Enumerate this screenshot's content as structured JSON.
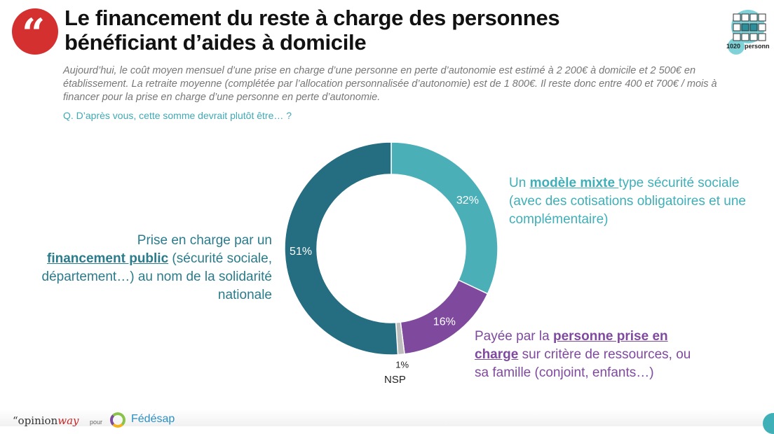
{
  "header": {
    "title_line1": "Le financement du reste à charge des personnes",
    "title_line2": "bénéficiant d’aides à domicile",
    "sample_count": "1020",
    "sample_label": "personn"
  },
  "intro": "Aujourd’hui, le coût moyen mensuel d’une prise en charge d’une personne en perte d’autonomie est estimé à 2 200€ à domicile et 2 500€ en établissement. La retraite moyenne (complétée par l’allocation personnalisée d’autonomie) est de 1 800€. Il reste donc entre 400 et 700€ / mois à financer pour la prise en charge d’une personne en perte d’autonomie.",
  "question": "Q. D’après vous, cette somme devrait plutôt être… ?",
  "chart_data": {
    "type": "pie",
    "donut": true,
    "start": "top",
    "direction": "clockwise",
    "slices": [
      {
        "key": "mixte",
        "value": 32,
        "label": "32%",
        "color": "#4bafb8"
      },
      {
        "key": "personne",
        "value": 16,
        "label": "16%",
        "color": "#7f4a9e"
      },
      {
        "key": "nsp",
        "value": 1,
        "label": "1%",
        "color": "#bdbdbd"
      },
      {
        "key": "public",
        "value": 51,
        "label": "51%",
        "color": "#256d80"
      }
    ],
    "annotations": {
      "public": {
        "pre": "Prise en charge par un",
        "bold": "financement public",
        "post": " (sécurité sociale, département…) au nom de la solidarité nationale"
      },
      "mixte": {
        "pre": "Un ",
        "bold": "modèle mixte ",
        "post": "type sécurité sociale (avec des cotisations obligatoires et une complémentaire)"
      },
      "personne": {
        "pre": "Payée par la ",
        "bold": "personne prise en charge",
        "post": " sur critère de ressources, ou sa famille (conjoint, enfants…)"
      },
      "nsp": {
        "label": "NSP"
      }
    }
  },
  "footer": {
    "brand": "opinion",
    "brand_accent": "way",
    "pour": "pour",
    "client": "Fédésap"
  }
}
